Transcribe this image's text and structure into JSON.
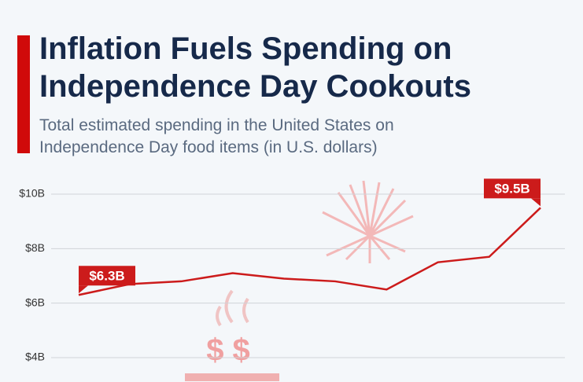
{
  "chart_data": {
    "type": "line",
    "title": "Inflation Fuels Spending on Independence Day Cookouts",
    "subtitle": "Total estimated spending in the United States on Independence Day food items (in U.S. dollars)",
    "categories": [
      null,
      null,
      null,
      null,
      null,
      null,
      null,
      null,
      null,
      null
    ],
    "series": [
      {
        "name": null,
        "color": "#cc1b1b",
        "values": [
          6.3,
          6.7,
          6.8,
          7.1,
          6.9,
          6.8,
          6.5,
          7.5,
          7.7,
          9.5
        ],
        "value_labels": [
          "$6.3B",
          null,
          null,
          null,
          null,
          null,
          null,
          null,
          null,
          "$9.5B"
        ]
      }
    ],
    "ylim": [
      4,
      10
    ],
    "yticks": [
      {
        "value": 4,
        "label": "$4B"
      },
      {
        "value": 6,
        "label": "$6B"
      },
      {
        "value": 8,
        "label": "$8B"
      },
      {
        "value": 10,
        "label": "$10B"
      }
    ],
    "grid": true
  }
}
